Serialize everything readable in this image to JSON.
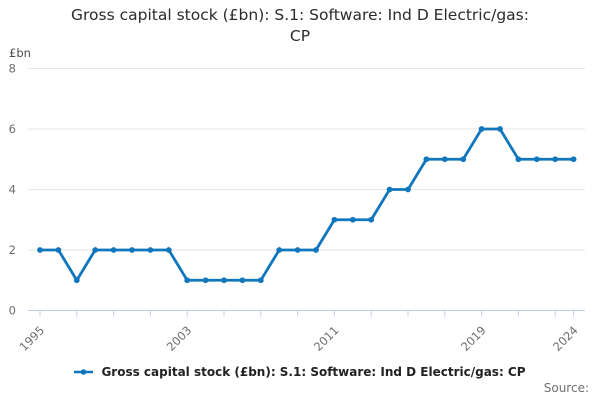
{
  "header": {
    "title_lines": [
      "Gross capital stock (£bn): S.1: Software: Ind D Electric/gas:",
      "CP"
    ]
  },
  "chart_data": {
    "type": "line",
    "title": "Gross capital stock (£bn): S.1: Software: Ind D Electric/gas: CP",
    "ylabel": "£bn",
    "xlabel": "",
    "x": [
      1995,
      1996,
      1997,
      1998,
      1999,
      2000,
      2001,
      2002,
      2003,
      2004,
      2005,
      2006,
      2007,
      2008,
      2009,
      2010,
      2011,
      2012,
      2013,
      2014,
      2015,
      2016,
      2017,
      2018,
      2019,
      2020,
      2021,
      2022,
      2023,
      2024
    ],
    "series": [
      {
        "name": "Gross capital stock (£bn): S.1: Software: Ind D Electric/gas: CP",
        "values": [
          2,
          2,
          1,
          2,
          2,
          2,
          2,
          2,
          1,
          1,
          1,
          1,
          1,
          2,
          2,
          2,
          3,
          3,
          3,
          4,
          4,
          5,
          5,
          5,
          6,
          6,
          5,
          5,
          5,
          5
        ]
      }
    ],
    "ylim": [
      0,
      8
    ],
    "y_ticks": [
      0,
      2,
      4,
      6,
      8
    ],
    "x_tick_interval_years": 2,
    "labeled_x_ticks": [
      1995,
      2003,
      2011,
      2019,
      2024
    ],
    "grid": "horizontal",
    "legend_position": "bottom",
    "colors": {
      "line": "#1177bd",
      "grid": "#e6e6e6",
      "axis": "#c2cce4",
      "tick_text": "#6e6e6e",
      "unit_text": "#4d4d4d"
    }
  },
  "legend": {
    "label": "Gross capital stock (£bn): S.1: Software: Ind D Electric/gas: CP"
  },
  "footer": {
    "source_label": "Source:"
  }
}
